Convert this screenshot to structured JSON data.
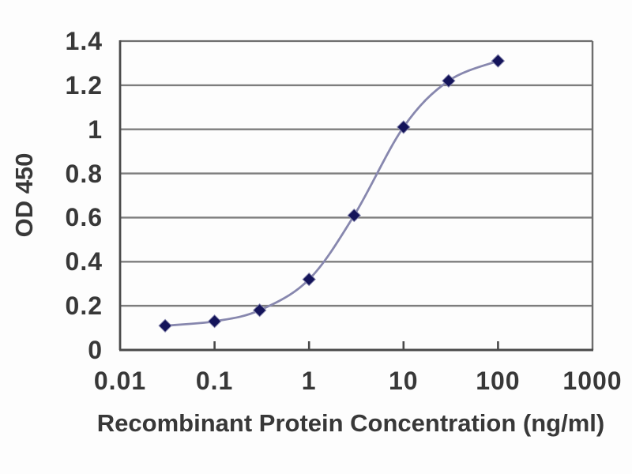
{
  "chart_data": {
    "type": "line",
    "title": "",
    "xlabel": "Recombinant Protein Concentration (ng/ml)",
    "ylabel": "OD 450",
    "x_scale": "log",
    "xlim": [
      0.01,
      1000
    ],
    "ylim": [
      0,
      1.4
    ],
    "x": [
      0.03,
      0.1,
      0.3,
      1,
      3,
      10,
      30,
      100
    ],
    "y": [
      0.11,
      0.13,
      0.18,
      0.32,
      0.61,
      1.01,
      1.22,
      1.31
    ],
    "x_tick_values": [
      0.01,
      0.1,
      1,
      10,
      100,
      1000
    ],
    "x_tick_labels": [
      "0.01",
      "0.1",
      "1",
      "10",
      "100",
      "1000"
    ],
    "y_tick_values": [
      0,
      0.2,
      0.4,
      0.6,
      0.8,
      1,
      1.2,
      1.4
    ],
    "y_tick_labels": [
      "0",
      "0.2",
      "0.4",
      "0.6",
      "0.8",
      "1",
      "1.2",
      "1.4"
    ],
    "grid": "horizontal",
    "legend": null,
    "marker": "diamond",
    "line_smoothing": true,
    "colors": {
      "line": "#8787ae",
      "marker": "#14145a",
      "gridline": "#7d7d7d",
      "border": "#6e6e6e",
      "axis": "#4a4a4a",
      "text": "#383838",
      "background": "#fdfdfd"
    }
  }
}
